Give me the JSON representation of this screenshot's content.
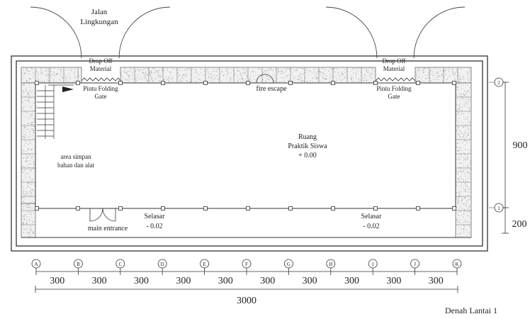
{
  "labels": {
    "jalan": [
      "Jalan",
      "Lingkungan"
    ],
    "drop_off_left": [
      "Drop Off",
      "Material"
    ],
    "drop_off_right": [
      "Drop Off",
      "Material"
    ],
    "gate_left": [
      "Pintu Folding",
      "Gate"
    ],
    "gate_right": [
      "Pintu Folding",
      "Gate"
    ],
    "fire_escape": "fire escape",
    "room": [
      "Ruang",
      "Praktik Siswa",
      "+ 0.00"
    ],
    "storage": [
      "area simpan",
      "bahan dan alat"
    ],
    "main_entrance": "main entrance",
    "selasar_left": [
      "Selasar",
      "- 0.02"
    ],
    "selasar_right": [
      "Selasar",
      "- 0.02"
    ],
    "title": "Denah Lantai 1"
  },
  "grid": {
    "columns": [
      "A",
      "B",
      "C",
      "D",
      "E",
      "F",
      "G",
      "H",
      "I",
      "J",
      "K"
    ],
    "rows": [
      "2",
      "1"
    ],
    "spacing_label": "300",
    "total_width_label": "3000",
    "row_dims": [
      "900",
      "200"
    ]
  },
  "colors": {
    "line": "#333333",
    "hatch_fill": "#f1f1f1",
    "speck": "#888888"
  }
}
